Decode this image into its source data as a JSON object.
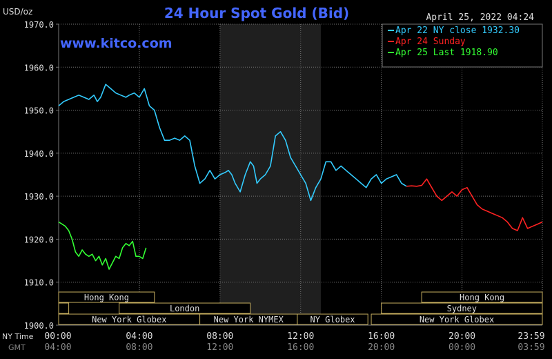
{
  "header": {
    "unit": "USD/oz",
    "title": "24 Hour Spot Gold (Bid)",
    "timestamp": "April 25, 2022 04:24",
    "watermark": "www.kitco.com"
  },
  "legend": [
    {
      "label": "Apr 22 NY close 1932.30",
      "color": "#33ccff"
    },
    {
      "label": "Apr 24 Sunday",
      "color": "#ff2222"
    },
    {
      "label": "Apr 25 Last 1918.90",
      "color": "#33ff33"
    }
  ],
  "axis_labels": {
    "ny_time": "NY Time",
    "gmt": "GMT"
  },
  "colors": {
    "title": "#4466ff",
    "watermark": "#4466ff",
    "axis_text": "#dddddd",
    "grid": "#777777",
    "shade": "#1f1f1f",
    "session_border": "#c8b060",
    "session_text": "#dddddd",
    "tick_gray": "#888888"
  },
  "sessions": [
    {
      "label": "Hong Kong",
      "row": 0,
      "start_min": 0,
      "end_min": 285
    },
    {
      "label": "Hong Kong",
      "row": 0,
      "start_min": 1080,
      "end_min": 1439
    },
    {
      "label": "London",
      "row": 1,
      "start_min": 180,
      "end_min": 570
    },
    {
      "label": "Sydney",
      "row": 1,
      "start_min": 960,
      "end_min": 1439
    },
    {
      "label": "New York Globex",
      "row": 2,
      "start_min": 0,
      "end_min": 420
    },
    {
      "label": "New York NYMEX",
      "row": 2,
      "start_min": 420,
      "end_min": 710
    },
    {
      "label": "NY Globex",
      "row": 2,
      "start_min": 710,
      "end_min": 920
    },
    {
      "label": "New York Globex",
      "row": 2,
      "start_min": 930,
      "end_min": 1439
    }
  ],
  "sessions_partial": [
    {
      "row": 1,
      "start_min": 0,
      "end_min": 30
    }
  ],
  "chart_data": {
    "type": "line",
    "title": "24 Hour Spot Gold (Bid)",
    "ylabel": "USD/oz",
    "ylim": [
      1900,
      1970
    ],
    "yticks": [
      "1970.0",
      "1960.0",
      "1950.0",
      "1940.0",
      "1930.0",
      "1920.0",
      "1910.0",
      "1900.0"
    ],
    "ytick_values": [
      1970,
      1960,
      1950,
      1940,
      1930,
      1920,
      1910,
      1900
    ],
    "xlim": [
      0,
      1439
    ],
    "xticks_ny": [
      "00:00",
      "04:00",
      "08:00",
      "12:00",
      "16:00",
      "20:00",
      "23:59"
    ],
    "xticks_gmt": [
      "04:00",
      "08:00",
      "12:00",
      "16:00",
      "20:00",
      "00:00",
      "03:59"
    ],
    "xtick_minutes": [
      0,
      240,
      480,
      720,
      960,
      1200,
      1439
    ],
    "nymex_shade_minutes": [
      480,
      780
    ],
    "grid": true,
    "series": [
      {
        "name": "Apr 22 NY close 1932.30",
        "color": "#33ccff",
        "x": [
          0,
          15,
          30,
          45,
          60,
          75,
          90,
          105,
          115,
          125,
          140,
          155,
          170,
          185,
          200,
          210,
          225,
          240,
          255,
          270,
          285,
          300,
          315,
          330,
          345,
          360,
          375,
          390,
          405,
          420,
          435,
          450,
          465,
          480,
          495,
          505,
          515,
          525,
          540,
          555,
          570,
          580,
          590,
          600,
          615,
          630,
          645,
          660,
          675,
          690,
          705,
          720,
          735,
          750,
          765,
          780,
          795,
          810,
          825,
          840,
          855,
          870,
          885,
          900,
          915,
          930,
          945,
          960,
          975,
          990,
          1005,
          1020,
          1035
        ],
        "y": [
          1951,
          1952,
          1952.5,
          1953,
          1953.5,
          1953,
          1952.5,
          1953.5,
          1952,
          1953,
          1956,
          1955,
          1954,
          1953.5,
          1953,
          1953.5,
          1954,
          1953,
          1955,
          1951,
          1950,
          1946,
          1943,
          1943,
          1943.5,
          1943,
          1944,
          1943,
          1937,
          1933,
          1934,
          1936,
          1934,
          1935,
          1935.5,
          1936,
          1935,
          1933,
          1931,
          1935,
          1938,
          1937,
          1933,
          1934,
          1935,
          1937,
          1944,
          1945,
          1943,
          1939,
          1937,
          1935,
          1933,
          1929,
          1932,
          1934,
          1938,
          1938,
          1936,
          1937,
          1936,
          1935,
          1934,
          1933,
          1932,
          1934,
          1935,
          1933,
          1934,
          1934.5,
          1935,
          1933,
          1932.3
        ]
      },
      {
        "name": "Apr 24 Sunday",
        "color": "#ff2222",
        "x": [
          1035,
          1050,
          1065,
          1080,
          1095,
          1110,
          1125,
          1140,
          1155,
          1170,
          1185,
          1200,
          1215,
          1230,
          1245,
          1260,
          1275,
          1290,
          1305,
          1320,
          1335,
          1350,
          1365,
          1380,
          1395,
          1410,
          1425,
          1439
        ],
        "y": [
          1932.3,
          1932.4,
          1932.3,
          1932.5,
          1934,
          1932,
          1930,
          1929,
          1930,
          1931,
          1930,
          1931.5,
          1932,
          1930,
          1928,
          1927,
          1926.5,
          1926,
          1925.5,
          1925,
          1924,
          1922.5,
          1922,
          1925,
          1922.5,
          1923,
          1923.5,
          1924
        ]
      },
      {
        "name": "Apr 25 Last 1918.90",
        "color": "#33ff33",
        "x": [
          0,
          10,
          20,
          30,
          40,
          50,
          60,
          70,
          80,
          90,
          100,
          110,
          120,
          130,
          140,
          150,
          160,
          170,
          180,
          190,
          200,
          210,
          220,
          230,
          240,
          250,
          260
        ],
        "y": [
          1924,
          1923.5,
          1923,
          1922,
          1920,
          1917,
          1916,
          1917.5,
          1916.5,
          1916,
          1916.5,
          1915,
          1916,
          1914,
          1915.5,
          1913,
          1914.5,
          1916,
          1915.5,
          1918,
          1919,
          1918.5,
          1919.5,
          1916,
          1916,
          1915.5,
          1918
        ]
      }
    ]
  }
}
